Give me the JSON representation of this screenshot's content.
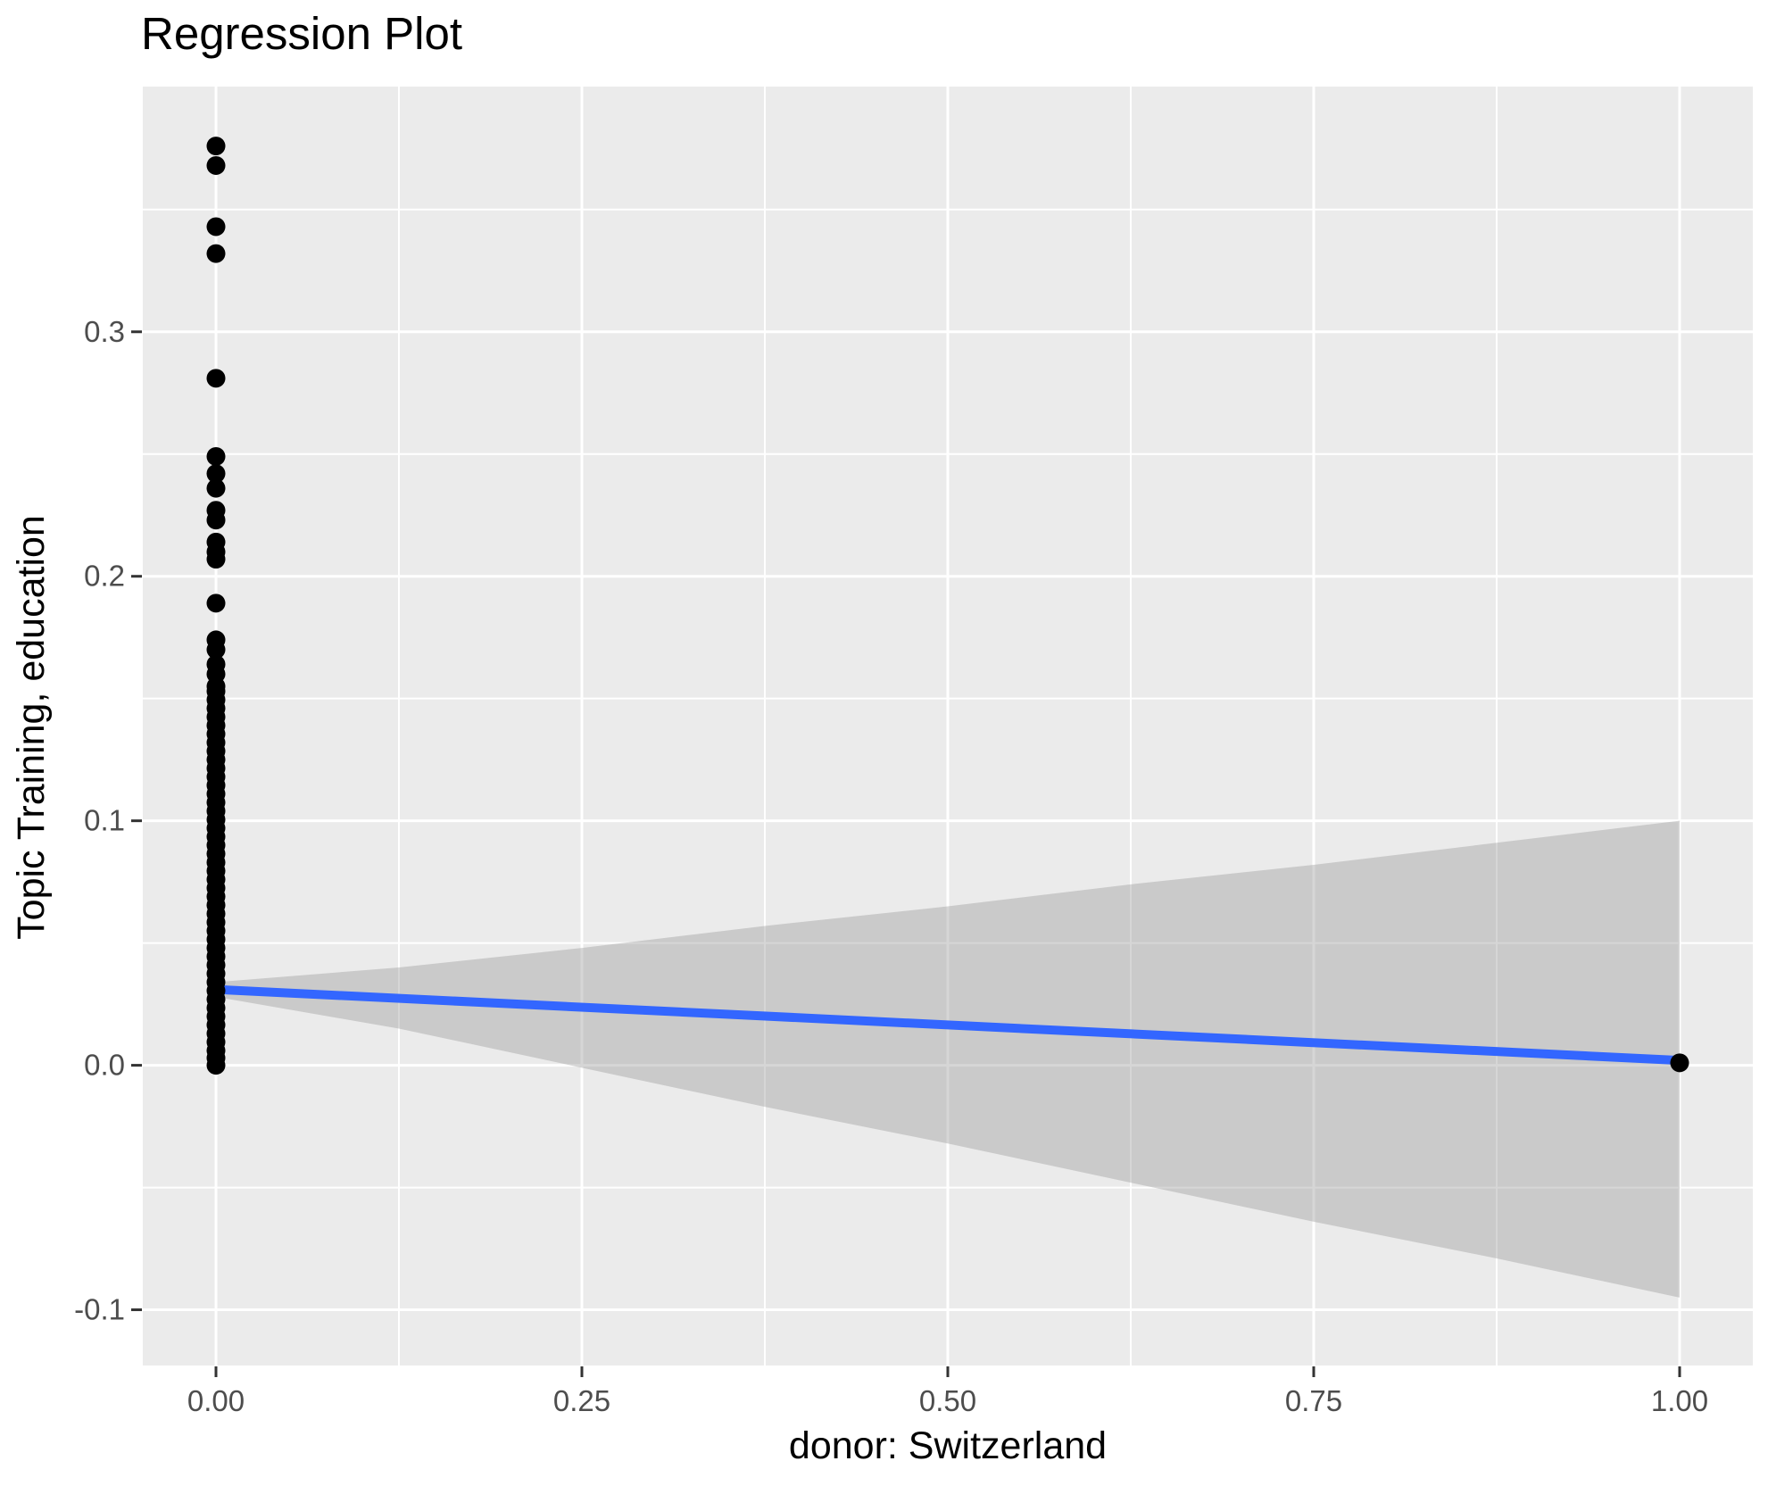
{
  "chart_data": {
    "type": "scatter",
    "title": "Regression Plot",
    "xlabel": "donor: Switzerland",
    "ylabel": "Topic Training, education",
    "xlim": [
      -0.05,
      1.05
    ],
    "ylim": [
      -0.1228,
      0.4003
    ],
    "grid": true,
    "legend": false,
    "x_ticks": {
      "values": [
        0,
        0.25,
        0.5,
        0.75,
        1
      ],
      "labels": [
        "0.00",
        "0.25",
        "0.50",
        "0.75",
        "1.00"
      ]
    },
    "y_ticks": {
      "values": [
        -0.1,
        0,
        0.1,
        0.2,
        0.3
      ],
      "labels": [
        "-0.1",
        "0.0",
        "0.1",
        "0.2",
        "0.3"
      ]
    },
    "x_minor": [
      0.125,
      0.375,
      0.625,
      0.875
    ],
    "y_minor": [
      -0.05,
      0.05,
      0.15,
      0.25,
      0.35
    ],
    "points_x0": [
      0.376,
      0.368,
      0.343,
      0.332,
      0.281,
      0.249,
      0.242,
      0.236,
      0.227,
      0.223,
      0.214,
      0.21,
      0.207,
      0.189,
      0.174,
      0.17,
      0.164,
      0.16,
      0.155,
      0.153,
      0.1495,
      0.146,
      0.1425,
      0.139,
      0.1355,
      0.132,
      0.1285,
      0.125,
      0.1215,
      0.118,
      0.1145,
      0.111,
      0.1075,
      0.104,
      0.1005,
      0.097,
      0.0935,
      0.09,
      0.0865,
      0.083,
      0.0795,
      0.076,
      0.0725,
      0.069,
      0.0655,
      0.062,
      0.0585,
      0.055,
      0.0515,
      0.048,
      0.0445,
      0.041,
      0.0375,
      0.034,
      0.0305,
      0.027,
      0.0235,
      0.02,
      0.0165,
      0.013,
      0.0095,
      0.006,
      0.003,
      0.0
    ],
    "point_x1": 0.001,
    "regression_line": {
      "x": [
        0,
        1
      ],
      "y": [
        0.031,
        0.002
      ]
    },
    "ci_band": {
      "x": [
        0,
        0.125,
        0.25,
        0.375,
        0.5,
        0.625,
        0.75,
        0.875,
        1.0
      ],
      "upper": [
        0.034,
        0.04,
        0.048,
        0.057,
        0.065,
        0.074,
        0.082,
        0.091,
        0.1
      ],
      "lower": [
        0.028,
        0.015,
        -0.001,
        -0.017,
        -0.032,
        -0.048,
        -0.064,
        -0.079,
        -0.095
      ]
    },
    "style": {
      "panel_bg": "#EBEBEB",
      "grid_color": "#FFFFFF",
      "band_fill": "#999999",
      "band_opacity": 0.4,
      "line_color": "#3366FF",
      "line_width": 10,
      "point_color": "#000000",
      "point_radius": 10.5,
      "tick_color": "#333333",
      "tick_label_color": "#4D4D4D"
    }
  }
}
